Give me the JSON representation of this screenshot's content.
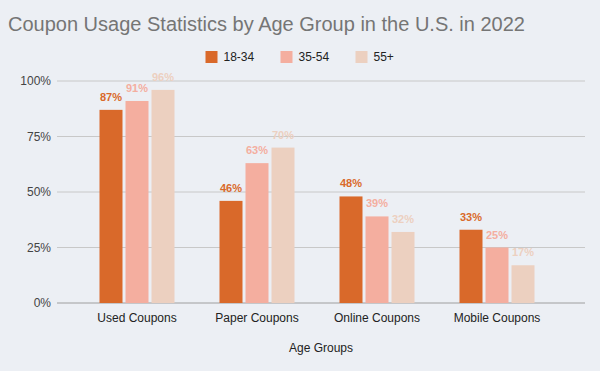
{
  "chart_data": {
    "type": "bar",
    "title": "Coupon Usage Statistics by Age Group in the U.S. in 2022",
    "x_label": "Age Groups",
    "categories": [
      "Used Coupons",
      "Paper Coupons",
      "Online Coupons",
      "Mobile Coupons"
    ],
    "series": [
      {
        "name": "18-34",
        "color": "#d9692a",
        "values": [
          87,
          46,
          48,
          33
        ],
        "value_labels": [
          "87%",
          "46%",
          "48%",
          "33%"
        ]
      },
      {
        "name": "35-54",
        "color": "#f4ae9f",
        "values": [
          91,
          63,
          39,
          25
        ],
        "value_labels": [
          "91%",
          "63%",
          "39%",
          "25%"
        ]
      },
      {
        "name": "55+",
        "color": "#ecd0c0",
        "values": [
          96,
          70,
          32,
          17
        ],
        "value_labels": [
          "96%",
          "70%",
          "32%",
          "17%"
        ]
      }
    ],
    "ylim": [
      0,
      100
    ],
    "yticks": [
      {
        "value": 0,
        "label": "0%"
      },
      {
        "value": 25,
        "label": "25%"
      },
      {
        "value": 50,
        "label": "50%"
      },
      {
        "value": 75,
        "label": "75%"
      },
      {
        "value": 100,
        "label": "100%"
      }
    ],
    "grid": true,
    "legend": "top",
    "data_labels": true
  }
}
